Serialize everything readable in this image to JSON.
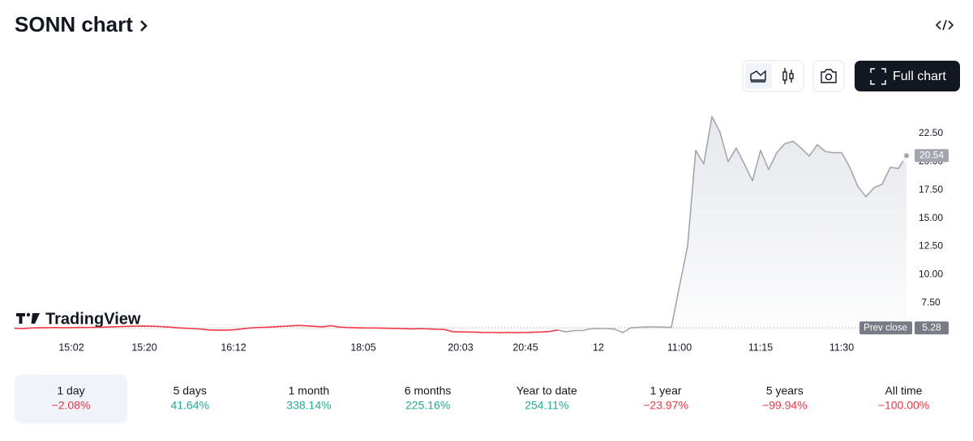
{
  "header": {
    "title": "SONN chart"
  },
  "toolbar": {
    "full_chart": "Full chart"
  },
  "watermark": "TradingView",
  "chart_data": {
    "type": "line",
    "categories": [
      null,
      null,
      null,
      null,
      null,
      null,
      null,
      "15:02",
      null,
      null,
      null,
      null,
      null,
      null,
      null,
      null,
      "15:20",
      null,
      null,
      null,
      null,
      null,
      null,
      null,
      null,
      null,
      null,
      "16:12",
      null,
      null,
      null,
      null,
      null,
      null,
      null,
      null,
      null,
      null,
      null,
      null,
      null,
      null,
      null,
      "18:05",
      null,
      null,
      null,
      null,
      null,
      null,
      null,
      null,
      null,
      null,
      null,
      "20:03",
      null,
      null,
      null,
      null,
      null,
      null,
      null,
      "20:45",
      null,
      null,
      null,
      null,
      null,
      null,
      null,
      null,
      "12",
      null,
      null,
      null,
      null,
      null,
      null,
      null,
      null,
      null,
      "11:00",
      null,
      null,
      null,
      null,
      null,
      null,
      null,
      null,
      null,
      "11:15",
      null,
      null,
      null,
      null,
      null,
      null,
      null,
      null,
      null,
      "11:30",
      null,
      null,
      null,
      null,
      null,
      null,
      null,
      null
    ],
    "series": [
      {
        "color": "#f23645",
        "values": [
          5.25,
          5.22,
          5.28,
          5.3,
          5.3,
          5.32,
          5.3,
          5.31,
          5.33,
          5.32,
          5.34,
          5.35,
          5.38,
          5.4,
          5.42,
          5.44,
          5.45,
          5.43,
          5.4,
          5.36,
          5.3,
          5.26,
          5.22,
          5.18,
          5.1,
          5.08,
          5.08,
          5.12,
          5.2,
          5.28,
          5.32,
          5.34,
          5.38,
          5.42,
          5.46,
          5.5,
          5.47,
          5.42,
          5.38,
          5.48,
          5.36,
          5.32,
          5.3,
          5.28,
          5.28,
          5.27,
          5.25,
          5.24,
          5.22,
          5.2,
          5.22,
          5.2,
          5.16,
          5.15,
          4.95,
          4.93,
          4.92,
          4.9,
          4.88,
          4.88,
          4.87,
          4.88,
          4.87,
          4.88,
          4.9,
          4.92,
          4.97,
          5.1,
          null,
          null,
          null,
          null,
          null,
          null,
          null,
          null,
          null,
          null,
          null,
          null,
          null,
          null,
          null,
          null,
          null,
          null,
          null,
          null,
          null,
          null,
          null,
          null,
          null,
          null,
          null,
          null,
          null,
          null,
          null,
          null,
          null,
          null,
          null,
          null,
          null,
          null,
          null,
          null,
          null,
          null,
          null
        ]
      },
      {
        "color": "#a3a6af",
        "values": [
          null,
          null,
          null,
          null,
          null,
          null,
          null,
          null,
          null,
          null,
          null,
          null,
          null,
          null,
          null,
          null,
          null,
          null,
          null,
          null,
          null,
          null,
          null,
          null,
          null,
          null,
          null,
          null,
          null,
          null,
          null,
          null,
          null,
          null,
          null,
          null,
          null,
          null,
          null,
          null,
          null,
          null,
          null,
          null,
          null,
          null,
          null,
          null,
          null,
          null,
          null,
          null,
          null,
          null,
          null,
          null,
          null,
          null,
          null,
          null,
          null,
          null,
          null,
          null,
          null,
          null,
          null,
          null,
          4.94,
          5.05,
          5.05,
          5.2,
          5.23,
          5.23,
          5.18,
          4.87,
          5.3,
          5.33,
          5.37,
          5.37,
          5.35,
          5.33,
          9.0,
          12.5,
          21.0,
          19.8,
          24.0,
          22.6,
          20.0,
          21.2,
          19.8,
          18.3,
          21.0,
          19.3,
          20.8,
          21.6,
          21.8,
          21.2,
          20.5,
          21.5,
          20.9,
          20.8,
          20.8,
          19.5,
          17.8,
          16.9,
          17.7,
          18.0,
          19.5,
          19.4,
          20.54
        ]
      }
    ],
    "ylim": [
      4.8,
      25
    ],
    "yticks": [
      {
        "value": 7.5,
        "label": "7.50"
      },
      {
        "value": 10,
        "label": "10.00"
      },
      {
        "value": 12.5,
        "label": "12.50"
      },
      {
        "value": 15,
        "label": "15.00"
      },
      {
        "value": 17.5,
        "label": "17.50"
      },
      {
        "value": 20,
        "label": "20.00"
      },
      {
        "value": 22.5,
        "label": "22.50"
      }
    ],
    "last_price": 20.54,
    "prev_close_label": "Prev close",
    "prev_close": 5.28
  },
  "periods": [
    {
      "label": "1 day",
      "change": "−2.08%"
    },
    {
      "label": "5 days",
      "change": "41.64%"
    },
    {
      "label": "1 month",
      "change": "338.14%"
    },
    {
      "label": "6 months",
      "change": "225.16%"
    },
    {
      "label": "Year to date",
      "change": "254.11%"
    },
    {
      "label": "1 year",
      "change": "−23.97%"
    },
    {
      "label": "5 years",
      "change": "−99.94%"
    },
    {
      "label": "All time",
      "change": "−100.00%"
    }
  ]
}
